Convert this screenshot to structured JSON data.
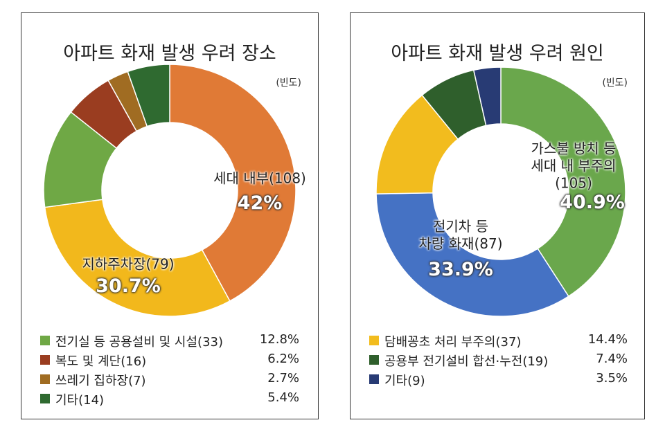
{
  "chart_data": [
    {
      "type": "donut",
      "title": "아파트 화재 발생 우려 장소",
      "unit": "(빈도)",
      "categories": [
        "세대 내부(108)",
        "지하주차장(79)",
        "전기실 등 공용설비 및 시설(33)",
        "복도 및 계단(16)",
        "쓰레기 집하장(7)",
        "기타(14)"
      ],
      "values": [
        42,
        30.7,
        12.8,
        6.2,
        2.7,
        5.4
      ],
      "value_labels": [
        "42%",
        "30.7%",
        "12.8%",
        "6.2%",
        "2.7%",
        "5.4%"
      ],
      "colors": [
        "#e07a36",
        "#f2b81c",
        "#6fa845",
        "#9a3d20",
        "#a06c22",
        "#2f6a30"
      ]
    },
    {
      "type": "donut",
      "title": "아파트 화재 발생 우려 원인",
      "unit": "(빈도)",
      "categories": [
        "가스불 방치 등\n세대 내 부주의(105)",
        "전기차 등\n차량 화재(87)",
        "담배꽁초 처리 부주의(37)",
        "공용부 전기설비 합선·누전(19)",
        "기타(9)"
      ],
      "values": [
        40.9,
        33.9,
        14.4,
        7.4,
        3.5
      ],
      "value_labels": [
        "40.9%",
        "33.9%",
        "14.4%",
        "7.4%",
        "3.5%"
      ],
      "colors": [
        "#6aa74c",
        "#4572c4",
        "#f2bc1e",
        "#2f5f2c",
        "#283b74"
      ]
    }
  ]
}
